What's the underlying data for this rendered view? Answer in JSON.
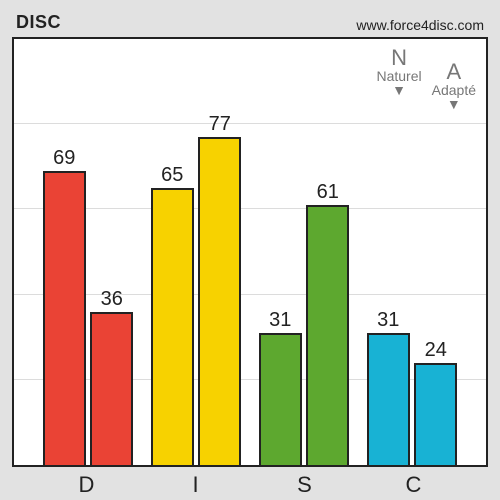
{
  "header": {
    "title": "DISC",
    "url": "www.force4disc.com"
  },
  "chart": {
    "type": "bar",
    "ylim": [
      0,
      100
    ],
    "grid_values": [
      20,
      40,
      60,
      80
    ],
    "grid_color": "#dcdcdc",
    "border_color": "#222222",
    "background_color": "#ffffff",
    "frame_background": "#e2e2e2",
    "label_fontsize": 20,
    "categories": [
      {
        "key": "D",
        "naturel": 69,
        "adapte": 36,
        "color": "#ea4335"
      },
      {
        "key": "I",
        "naturel": 65,
        "adapte": 77,
        "color": "#f7d200"
      },
      {
        "key": "S",
        "naturel": 31,
        "adapte": 61,
        "color": "#5da82f"
      },
      {
        "key": "C",
        "naturel": 31,
        "adapte": 24,
        "color": "#18b2d4"
      }
    ],
    "legend": {
      "naturel": {
        "key": "N",
        "label": "Naturel",
        "marker": "▼"
      },
      "adapte": {
        "key": "A",
        "label": "Adapté",
        "marker": "▼"
      }
    }
  }
}
